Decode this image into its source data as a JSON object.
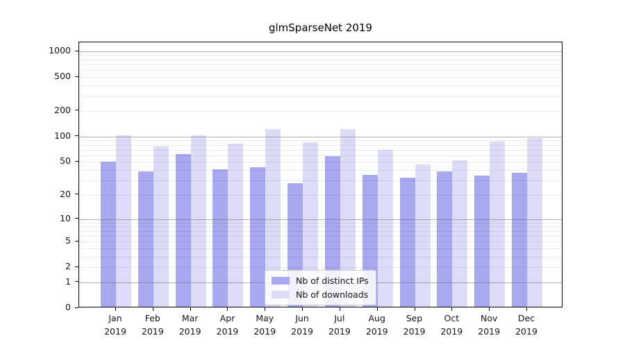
{
  "chart_data": {
    "type": "bar",
    "title": "glmSparseNet 2019",
    "categories": [
      "Jan",
      "Feb",
      "Mar",
      "Apr",
      "May",
      "Jun",
      "Jul",
      "Aug",
      "Sep",
      "Oct",
      "Nov",
      "Dec"
    ],
    "x_year_label": "2019",
    "series": [
      {
        "name": "Nb of distinct IPs",
        "color": "#a8a8f0",
        "values": [
          49,
          37,
          60,
          39,
          42,
          27,
          56,
          34,
          31,
          37,
          33,
          36
        ]
      },
      {
        "name": "Nb of downloads",
        "color": "#dcdcf8",
        "values": [
          99,
          74,
          100,
          80,
          119,
          83,
          118,
          67,
          45,
          50,
          84,
          92
        ]
      }
    ],
    "yscale": "log10(1+v)",
    "ylim": [
      0,
      1000
    ],
    "y_ticks": [
      0,
      1,
      2,
      5,
      10,
      20,
      50,
      100,
      200,
      500,
      1000
    ],
    "major_gridlines": [
      1,
      10,
      100,
      1000
    ],
    "minor_gridlines": [
      2,
      3,
      4,
      5,
      6,
      7,
      8,
      9,
      20,
      30,
      40,
      50,
      60,
      70,
      80,
      90,
      200,
      300,
      400,
      500,
      600,
      700,
      800,
      900
    ],
    "grid": true,
    "legend_position": "bottom-center",
    "colors": {
      "ips_bar": "#a8a8f0",
      "downloads_bar": "#dcdcf8",
      "major_grid": "#6e6e6e",
      "minor_grid": "#ebebeb",
      "axis": "#000000"
    }
  }
}
